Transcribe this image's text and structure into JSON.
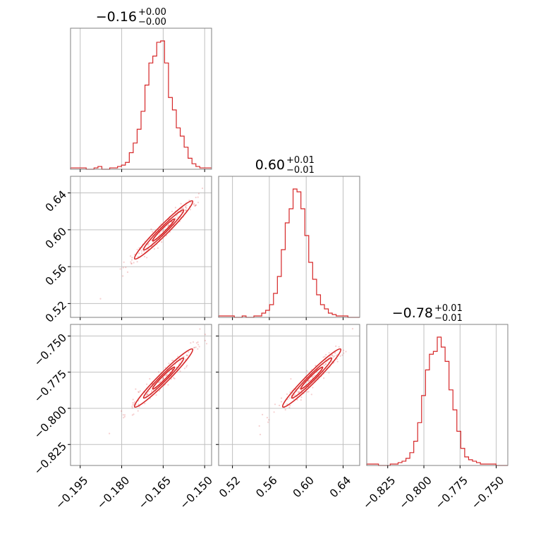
{
  "chart_data": {
    "type": "corner",
    "colors": {
      "series": "#d62728",
      "grid": "#c0c0c0",
      "frame": "#808080"
    },
    "grid": true,
    "parameters": [
      {
        "title": {
          "median": "−0.16",
          "plus": "+0.00",
          "minus": "−0.00"
        },
        "range": [
          -0.1985,
          -0.1475
        ],
        "ticks": [
          -0.195,
          -0.18,
          -0.165,
          -0.15
        ],
        "tick_labels": [
          "−0.195",
          "−0.180",
          "−0.165",
          "−0.150"
        ]
      },
      {
        "title": {
          "median": "0.60",
          "plus": "+0.01",
          "minus": "−0.01"
        },
        "range": [
          0.505,
          0.658
        ],
        "ticks": [
          0.52,
          0.56,
          0.6,
          0.64
        ],
        "tick_labels": [
          "0.52",
          "0.56",
          "0.60",
          "0.64"
        ]
      },
      {
        "title": {
          "median": "−0.78",
          "plus": "+0.01",
          "minus": "−0.01"
        },
        "range": [
          -0.8395,
          -0.742
        ],
        "ticks": [
          -0.825,
          -0.8,
          -0.775,
          -0.75
        ],
        "tick_labels": [
          "−0.825",
          "−0.800",
          "−0.775",
          "−0.750"
        ]
      }
    ],
    "histograms": [
      {
        "param": 0,
        "counts": [
          1,
          1,
          1,
          1,
          0,
          0,
          1,
          2,
          0,
          0,
          1,
          1,
          2,
          3,
          5,
          12,
          19,
          29,
          42,
          61,
          77,
          82,
          92,
          93,
          77,
          52,
          43,
          30,
          24,
          16,
          8,
          4,
          2,
          1,
          1,
          1
        ]
      },
      {
        "param": 1,
        "counts": [
          1,
          1,
          1,
          1,
          0,
          0,
          1,
          0,
          0,
          1,
          1,
          3,
          5,
          9,
          17,
          29,
          48,
          67,
          77,
          91,
          89,
          77,
          58,
          39,
          27,
          16,
          9,
          6,
          3,
          2,
          1,
          1,
          1,
          0,
          0,
          0
        ]
      },
      {
        "param": 2,
        "counts": [
          1,
          1,
          1,
          0,
          0,
          0,
          1,
          1,
          2,
          3,
          5,
          9,
          17,
          30,
          49,
          67,
          78,
          80,
          90,
          83,
          73,
          53,
          39,
          24,
          12,
          6,
          4,
          3,
          2,
          1,
          1,
          1,
          1,
          0,
          0,
          0
        ]
      }
    ],
    "correlations": [
      {
        "x": 1,
        "y": 0,
        "rho": 0.985
      },
      {
        "x": 2,
        "y": 0,
        "rho": 0.985
      },
      {
        "x": 2,
        "y": 1,
        "rho": 0.985
      }
    ]
  }
}
